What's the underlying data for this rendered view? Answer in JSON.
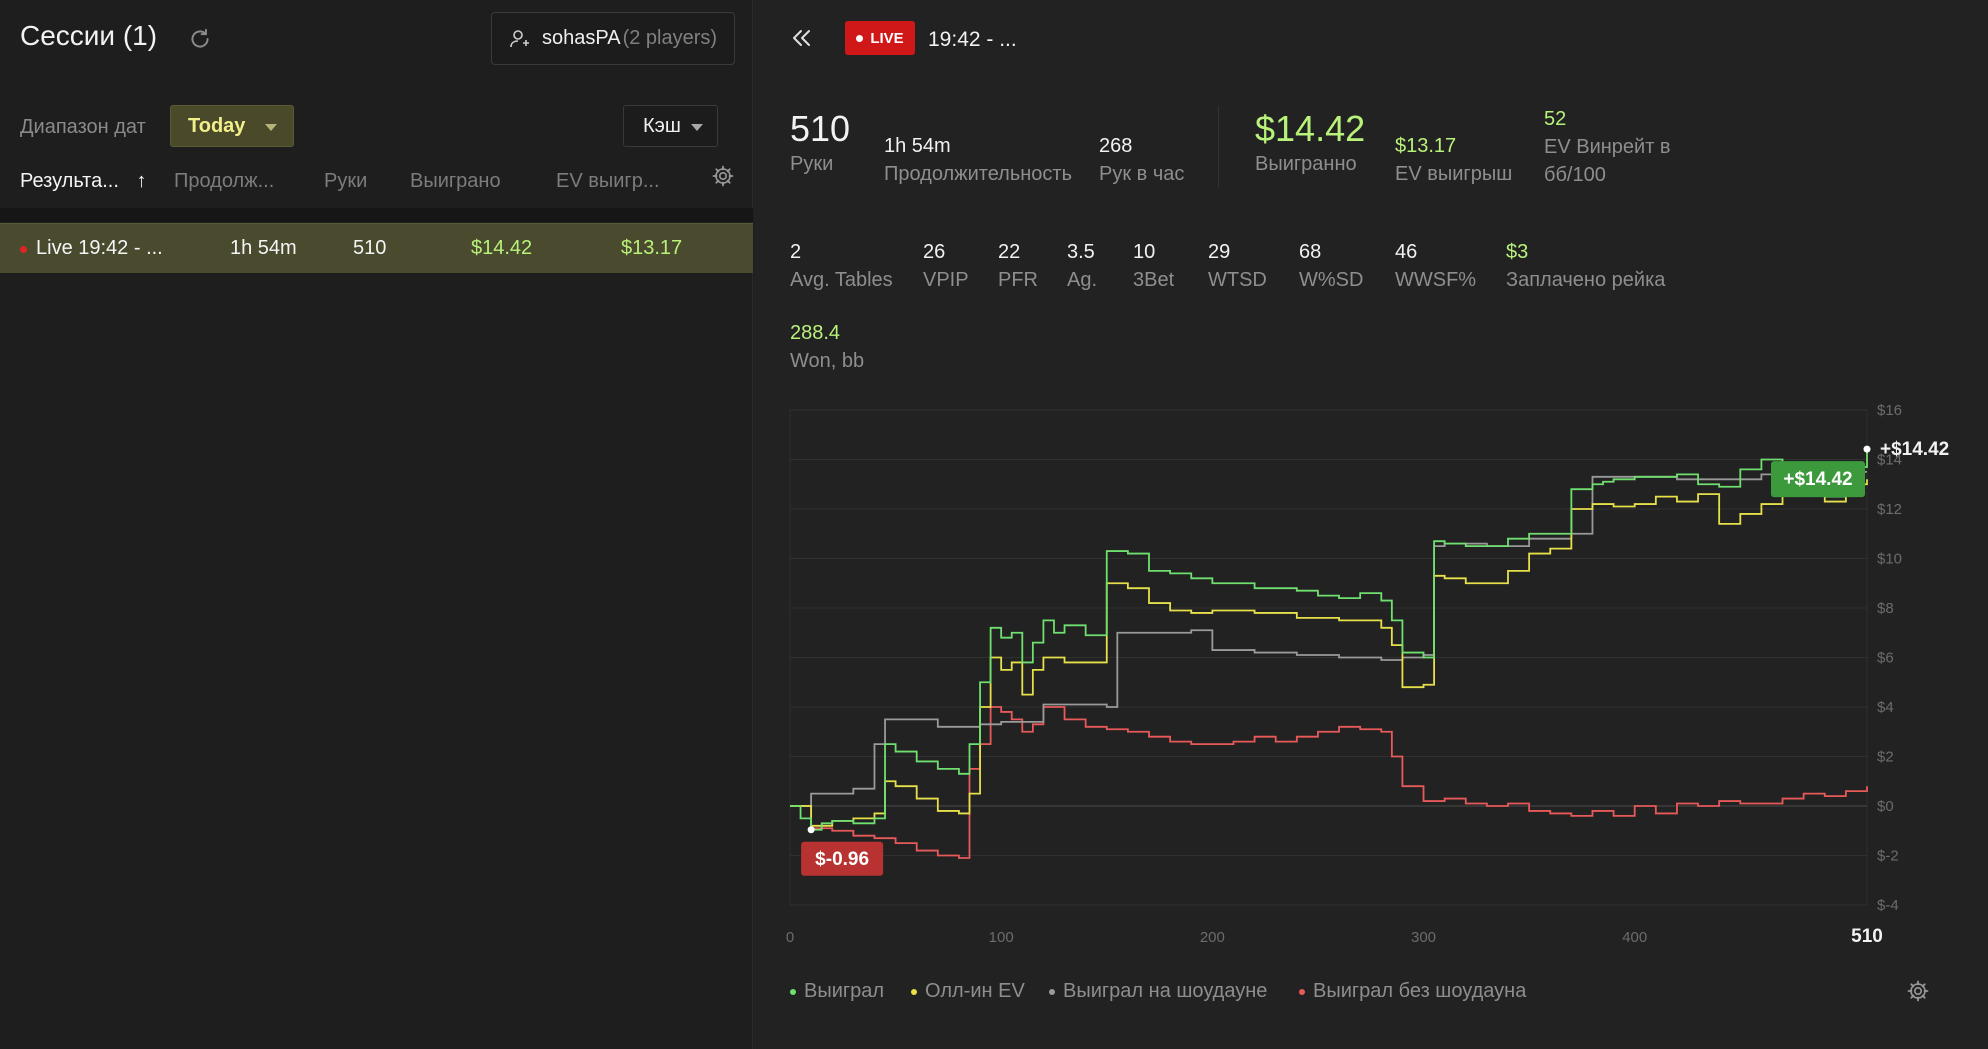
{
  "left": {
    "title": "Сессии (1)",
    "player": {
      "name": "sohasPA",
      "count": "(2 players)"
    },
    "date_range_label": "Диапазон дат",
    "date_range_value": "Today",
    "game_type": "Кэш",
    "columns": [
      "Результа...",
      "Продолж...",
      "Руки",
      "Выиграно",
      "EV выигр..."
    ],
    "sort_arrow": "↑",
    "session": {
      "name": "Live 19:42 - ...",
      "duration": "1h 54m",
      "hands": "510",
      "won": "$14.42",
      "ev_won": "$13.17"
    }
  },
  "right": {
    "live_label": "LIVE",
    "title": "19:42 - ...",
    "summary": {
      "hands": {
        "value": "510",
        "label": "Руки"
      },
      "duration": {
        "value": "1h 54m",
        "label": "Продолжительность"
      },
      "hands_per_hour": {
        "value": "268",
        "label": "Рук в час"
      },
      "won": {
        "value": "$14.42",
        "label": "Выигранно"
      },
      "ev_won": {
        "value": "$13.17",
        "label": "EV выигрыш"
      },
      "ev_winrate": {
        "value": "52",
        "label_1": "EV Винрейт в",
        "label_2": "бб/100"
      }
    },
    "stats": [
      {
        "value": "2",
        "label": "Avg. Tables"
      },
      {
        "value": "26",
        "label": "VPIP"
      },
      {
        "value": "22",
        "label": "PFR"
      },
      {
        "value": "3.5",
        "label": "Ag."
      },
      {
        "value": "10",
        "label": "3Bet"
      },
      {
        "value": "29",
        "label": "WTSD"
      },
      {
        "value": "68",
        "label": "W%SD"
      },
      {
        "value": "46",
        "label": "WWSF%"
      },
      {
        "value": "$3",
        "label": "Заплачено рейка"
      }
    ],
    "won_bb": {
      "value": "288.4",
      "label": "Won, bb"
    },
    "legend": [
      {
        "label": "Выиграл",
        "color": "#6fe06f"
      },
      {
        "label": "Олл-ин EV",
        "color": "#e6e04a"
      },
      {
        "label": "Выиграл на шоудауне",
        "color": "#9a9a9a"
      },
      {
        "label": "Выиграл без шоудауна",
        "color": "#e85a5a"
      }
    ]
  },
  "chart_data": {
    "type": "line",
    "xlim": [
      0,
      510
    ],
    "ylim": [
      -4,
      16
    ],
    "x_ticks": [
      0,
      100,
      200,
      300,
      400,
      510
    ],
    "x_tick_labels": [
      "0",
      "100",
      "200",
      "300",
      "400",
      "510"
    ],
    "y_ticks": [
      -4,
      -2,
      0,
      2,
      4,
      6,
      8,
      10,
      12,
      14,
      16
    ],
    "y_tick_labels": [
      "$-4",
      "$-2",
      "$0",
      "$2",
      "$4",
      "$6",
      "$8",
      "$10",
      "$12",
      "$14",
      "$16"
    ],
    "annotations": {
      "max_label": "+$14.42",
      "end_label": "+$14.42",
      "min_label": "$-0.96"
    },
    "series": [
      {
        "name": "Выиграл",
        "color": "#6fe06f",
        "x": [
          0,
          5,
          10,
          15,
          20,
          30,
          40,
          45,
          50,
          60,
          70,
          80,
          85,
          90,
          95,
          100,
          105,
          110,
          115,
          120,
          125,
          130,
          140,
          150,
          160,
          170,
          180,
          190,
          200,
          210,
          220,
          230,
          240,
          250,
          260,
          270,
          280,
          285,
          290,
          300,
          305,
          310,
          320,
          330,
          340,
          350,
          360,
          370,
          380,
          385,
          390,
          400,
          410,
          420,
          430,
          440,
          450,
          460,
          465,
          470,
          480,
          490,
          500,
          510
        ],
        "y": [
          0,
          -0.5,
          -0.96,
          -0.7,
          -0.6,
          -0.7,
          -0.5,
          2.5,
          2.2,
          1.8,
          1.5,
          1.3,
          2.5,
          5.0,
          7.2,
          6.8,
          7.0,
          5.8,
          6.6,
          7.5,
          7.0,
          7.3,
          6.9,
          10.3,
          10.2,
          9.5,
          9.4,
          9.2,
          9.0,
          9.0,
          8.8,
          8.8,
          8.7,
          8.5,
          8.4,
          8.6,
          8.3,
          7.5,
          6.2,
          6.0,
          10.7,
          10.6,
          10.5,
          10.5,
          10.8,
          11.0,
          11.0,
          12.8,
          13.0,
          13.1,
          13.2,
          13.3,
          13.3,
          13.4,
          13.0,
          12.9,
          13.6,
          14.0,
          14.0,
          13.8,
          13.4,
          12.5,
          13.7,
          14.42
        ]
      },
      {
        "name": "Олл-ин EV",
        "color": "#e6e04a",
        "x": [
          0,
          10,
          20,
          30,
          40,
          45,
          50,
          60,
          70,
          80,
          85,
          90,
          95,
          100,
          105,
          110,
          115,
          120,
          130,
          140,
          150,
          160,
          170,
          180,
          190,
          200,
          220,
          240,
          260,
          280,
          285,
          290,
          300,
          305,
          310,
          320,
          330,
          340,
          350,
          360,
          370,
          380,
          390,
          400,
          410,
          420,
          430,
          440,
          450,
          460,
          470,
          480,
          490,
          500,
          510
        ],
        "y": [
          0,
          -0.8,
          -0.6,
          -0.5,
          -0.3,
          1.0,
          0.8,
          0.3,
          -0.2,
          -0.3,
          0.5,
          4.0,
          6.0,
          5.5,
          5.8,
          4.5,
          5.5,
          6.0,
          5.8,
          5.8,
          9.0,
          8.8,
          8.2,
          7.9,
          7.8,
          7.9,
          7.8,
          7.6,
          7.5,
          7.2,
          6.5,
          4.8,
          4.9,
          9.3,
          9.2,
          9.0,
          9.0,
          9.5,
          10.2,
          10.4,
          12.0,
          12.2,
          12.1,
          12.2,
          12.5,
          12.3,
          12.6,
          11.4,
          11.8,
          12.2,
          13.6,
          13.5,
          12.3,
          13.0,
          13.2
        ]
      },
      {
        "name": "Выиграл на шоудауне",
        "color": "#9a9a9a",
        "x": [
          0,
          10,
          30,
          40,
          45,
          60,
          70,
          80,
          90,
          100,
          120,
          130,
          150,
          155,
          180,
          190,
          200,
          220,
          240,
          260,
          280,
          290,
          300,
          305,
          310,
          330,
          350,
          370,
          380,
          400,
          420,
          440,
          460,
          480,
          500,
          510
        ],
        "y": [
          0,
          0.5,
          0.7,
          2.5,
          3.5,
          3.5,
          3.2,
          3.2,
          3.3,
          3.4,
          4.1,
          4.1,
          4.0,
          7.0,
          7.0,
          7.1,
          6.3,
          6.2,
          6.1,
          6.0,
          5.9,
          6.0,
          6.1,
          10.5,
          10.6,
          10.5,
          10.8,
          11.0,
          13.3,
          13.3,
          13.2,
          13.2,
          13.4,
          13.5,
          13.5,
          13.5
        ]
      },
      {
        "name": "Выиграл без шоудауна",
        "color": "#e85a5a",
        "x": [
          0,
          10,
          20,
          30,
          40,
          50,
          60,
          70,
          80,
          85,
          90,
          95,
          100,
          105,
          110,
          115,
          120,
          130,
          140,
          150,
          160,
          170,
          180,
          190,
          200,
          210,
          220,
          230,
          240,
          250,
          260,
          270,
          280,
          285,
          290,
          300,
          310,
          320,
          330,
          340,
          350,
          360,
          370,
          380,
          390,
          400,
          410,
          420,
          430,
          440,
          450,
          460,
          470,
          480,
          490,
          500,
          510
        ],
        "y": [
          0,
          -0.9,
          -1.0,
          -1.2,
          -1.3,
          -1.5,
          -1.8,
          -2.0,
          -2.1,
          1.5,
          2.5,
          4.0,
          3.8,
          3.5,
          3.0,
          3.3,
          4.0,
          3.5,
          3.2,
          3.1,
          3.0,
          2.8,
          2.6,
          2.5,
          2.5,
          2.6,
          2.8,
          2.6,
          2.8,
          3.0,
          3.2,
          3.1,
          3.0,
          2.0,
          0.8,
          0.2,
          0.3,
          0.1,
          0.0,
          0.1,
          -0.2,
          -0.3,
          -0.4,
          -0.2,
          -0.4,
          0.0,
          -0.3,
          0.1,
          0.0,
          0.2,
          0.1,
          0.1,
          0.3,
          0.5,
          0.4,
          0.6,
          0.8
        ]
      }
    ]
  }
}
